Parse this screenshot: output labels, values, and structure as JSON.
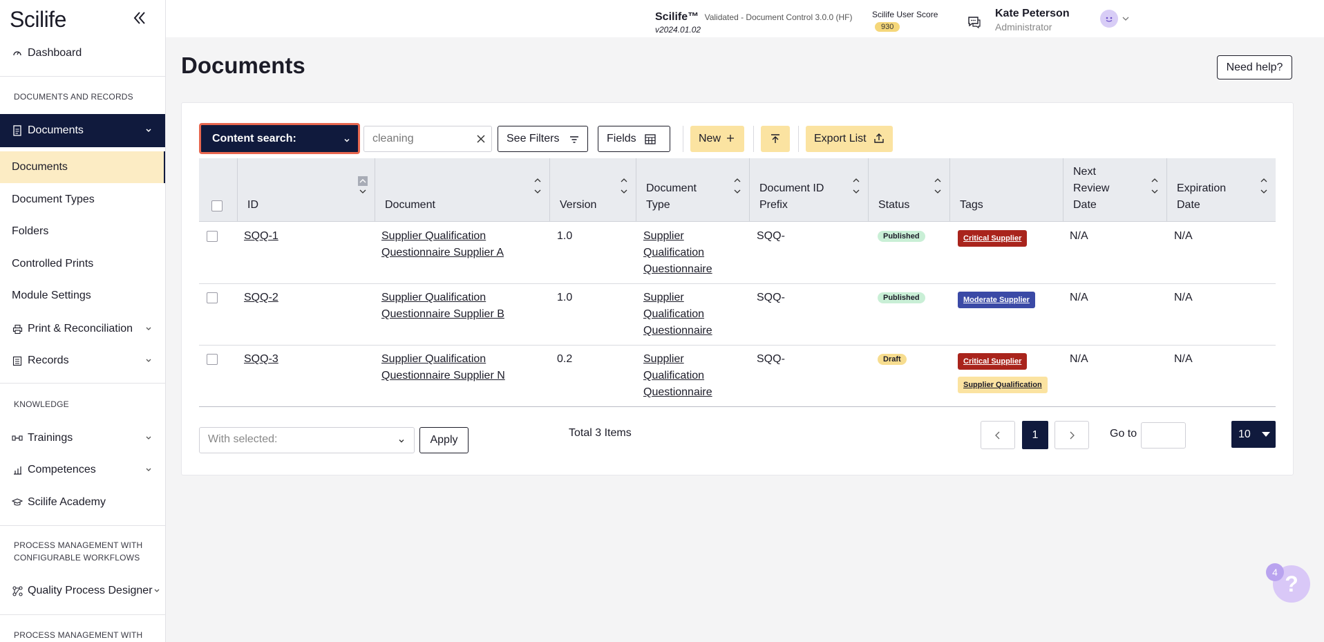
{
  "sidebar": {
    "logo": "Scilife",
    "dashboard": "Dashboard",
    "section_documents": "DOCUMENTS AND RECORDS",
    "documents_group": "Documents",
    "sub_items": [
      "Documents",
      "Document Types",
      "Folders",
      "Controlled Prints",
      "Module Settings"
    ],
    "print_reconciliation": "Print & Reconciliation",
    "records": "Records",
    "section_knowledge": "KNOWLEDGE",
    "trainings": "Trainings",
    "competences": "Competences",
    "academy": "Scilife Academy",
    "section_process": "PROCESS MANAGEMENT WITH CONFIGURABLE WORKFLOWS",
    "quality_designer": "Quality Process Designer",
    "section_process2": "PROCESS MANAGEMENT WITH"
  },
  "header": {
    "app_name": "Scilife™",
    "app_subtitle": "Validated - Document Control 3.0.0 (HF)",
    "version": "v2024.01.02",
    "score_label": "Scilife User Score",
    "score_value": "930",
    "user_name": "Kate Peterson",
    "user_role": "Administrator"
  },
  "page": {
    "title": "Documents",
    "help_button": "Need help?"
  },
  "toolbar": {
    "content_search": "Content search:",
    "search_value": "cleaning",
    "see_filters": "See Filters",
    "fields": "Fields",
    "new": "New",
    "export": "Export List"
  },
  "table": {
    "headers": [
      "ID",
      "Document",
      "Version",
      "Document Type",
      "Document ID Prefix",
      "Status",
      "Tags",
      "Next Review Date",
      "Expiration Date"
    ],
    "rows": [
      {
        "id": "SQQ-1",
        "document": "Supplier Qualification Questionnaire Supplier A",
        "version": "1.0",
        "type": "Supplier Qualification Questionnaire",
        "prefix": "SQQ-",
        "status": "Published",
        "tags": [
          "Critical Supplier"
        ],
        "review": "N/A",
        "expiration": "N/A"
      },
      {
        "id": "SQQ-2",
        "document": "Supplier Qualification Questionnaire Supplier B",
        "version": "1.0",
        "type": "Supplier Qualification Questionnaire",
        "prefix": "SQQ-",
        "status": "Published",
        "tags": [
          "Moderate Supplier"
        ],
        "review": "N/A",
        "expiration": "N/A"
      },
      {
        "id": "SQQ-3",
        "document": "Supplier Qualification Questionnaire Supplier N",
        "version": "0.2",
        "type": "Supplier Qualification Questionnaire",
        "prefix": "SQQ-",
        "status": "Draft",
        "tags": [
          "Critical Supplier",
          "Supplier Qualification"
        ],
        "review": "N/A",
        "expiration": "N/A"
      }
    ]
  },
  "footer": {
    "with_selected": "With selected:",
    "apply": "Apply",
    "total": "Total 3 Items",
    "current_page": "1",
    "goto": "Go to",
    "page_size": "10"
  },
  "help_fab": {
    "count": "4",
    "symbol": "?"
  },
  "colors": {
    "navy": "#101a3d",
    "highlight": "#fcecc4",
    "accent_yellow": "#fbe3a1",
    "status_published": "#c9efd6",
    "status_draft": "#f7dd8f",
    "tag_critical": "#a9241c",
    "tag_moderate": "#3b4aa6",
    "tag_qualification": "#fbe3a1",
    "search_outline": "#e8674f"
  }
}
